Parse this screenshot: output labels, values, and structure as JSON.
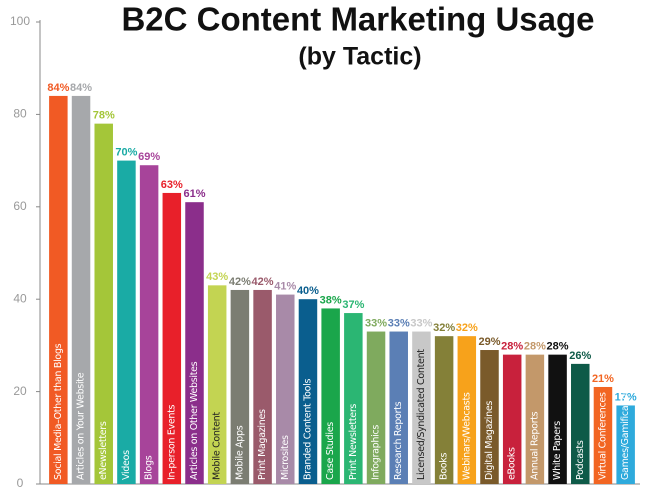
{
  "chart_data": {
    "type": "bar",
    "title": "B2C Content Marketing Usage",
    "subtitle": "(by Tactic)",
    "categories": [
      "Social Media–Other than Blogs",
      "Articles on Your Website",
      "eNewsletters",
      "Videos",
      "Blogs",
      "In-person Events",
      "Articles on Other Websites",
      "Mobile Content",
      "Mobile Apps",
      "Print Magazines",
      "Microsites",
      "Branded Content Tools",
      "Case Studies",
      "Print Newsletters",
      "Infographics",
      "Research Reports",
      "Licensed/Syndicated Content",
      "Books",
      "Webinars/Webcasts",
      "Digital Magazines",
      "eBooks",
      "Annual Reports",
      "White Papers",
      "Podcasts",
      "Virtual Conferences",
      "Games/Gamification"
    ],
    "values": [
      84,
      84,
      78,
      70,
      69,
      63,
      61,
      43,
      42,
      42,
      41,
      40,
      38,
      37,
      33,
      33,
      33,
      32,
      32,
      29,
      28,
      28,
      28,
      26,
      21,
      17
    ],
    "value_labels": [
      "84%",
      "84%",
      "78%",
      "70%",
      "69%",
      "63%",
      "61%",
      "43%",
      "42%",
      "42%",
      "41%",
      "40%",
      "38%",
      "37%",
      "33%",
      "33%",
      "33%",
      "32%",
      "32%",
      "29%",
      "28%",
      "28%",
      "28%",
      "26%",
      "21%",
      "17%"
    ],
    "colors": [
      "#f15a24",
      "#a6a8ab",
      "#a4c639",
      "#1aaba5",
      "#a7449a",
      "#e8202a",
      "#8b2e8b",
      "#c3d452",
      "#7b7d72",
      "#9a5a6b",
      "#a88aa8",
      "#0a5e8e",
      "#1aa64b",
      "#2bb673",
      "#7faa5e",
      "#5b7fb5",
      "#c8c8c8",
      "#848038",
      "#f7a21b",
      "#7a5a2a",
      "#c8213c",
      "#c3986a",
      "#111111",
      "#0e5a48",
      "#f26522",
      "#2eaadc"
    ],
    "ylim": [
      0,
      100
    ],
    "yticks": [
      0,
      20,
      40,
      60,
      80,
      100
    ],
    "grid": false
  }
}
